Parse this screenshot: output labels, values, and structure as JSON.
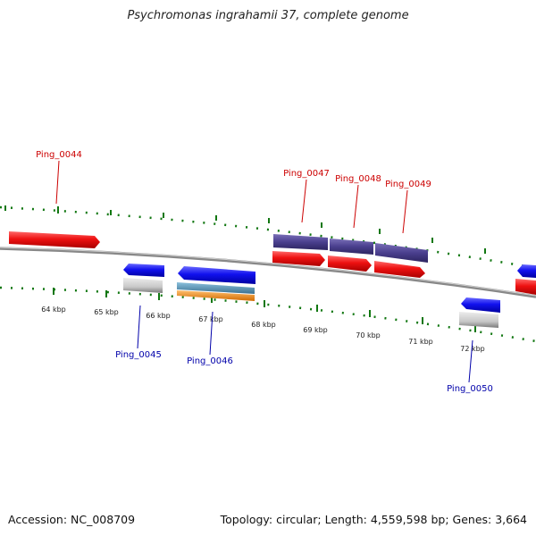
{
  "title": "Psychromonas ingrahamii 37, complete genome",
  "accession_text": "Accession: NC_008709",
  "summary_text": "Topology: circular; Length: 4,559,598 bp; Genes: 3,664",
  "colors": {
    "forward_gene": "#ee1111",
    "reverse_gene": "#1111ee",
    "forward_label": "#cc0000",
    "reverse_label": "#0000aa",
    "cds_purple": "#4a3f8e",
    "grey_feature": "#c8c8c8",
    "teal_feature": "#4f8fb0",
    "orange_feature": "#f08a1c",
    "scale_tick": "#117711",
    "backbone": "#888888"
  },
  "scale": {
    "unit": "kbp",
    "tick_labels": [
      "64 kbp",
      "65 kbp",
      "66 kbp",
      "67 kbp",
      "68 kbp",
      "69 kbp",
      "70 kbp",
      "71 kbp",
      "72 kbp"
    ]
  },
  "genes": {
    "forward": [
      {
        "name": "Ping_0044"
      },
      {
        "name": "Ping_0047"
      },
      {
        "name": "Ping_0048"
      },
      {
        "name": "Ping_0049"
      }
    ],
    "reverse": [
      {
        "name": "Ping_0045"
      },
      {
        "name": "Ping_0046"
      },
      {
        "name": "Ping_0050"
      }
    ]
  }
}
